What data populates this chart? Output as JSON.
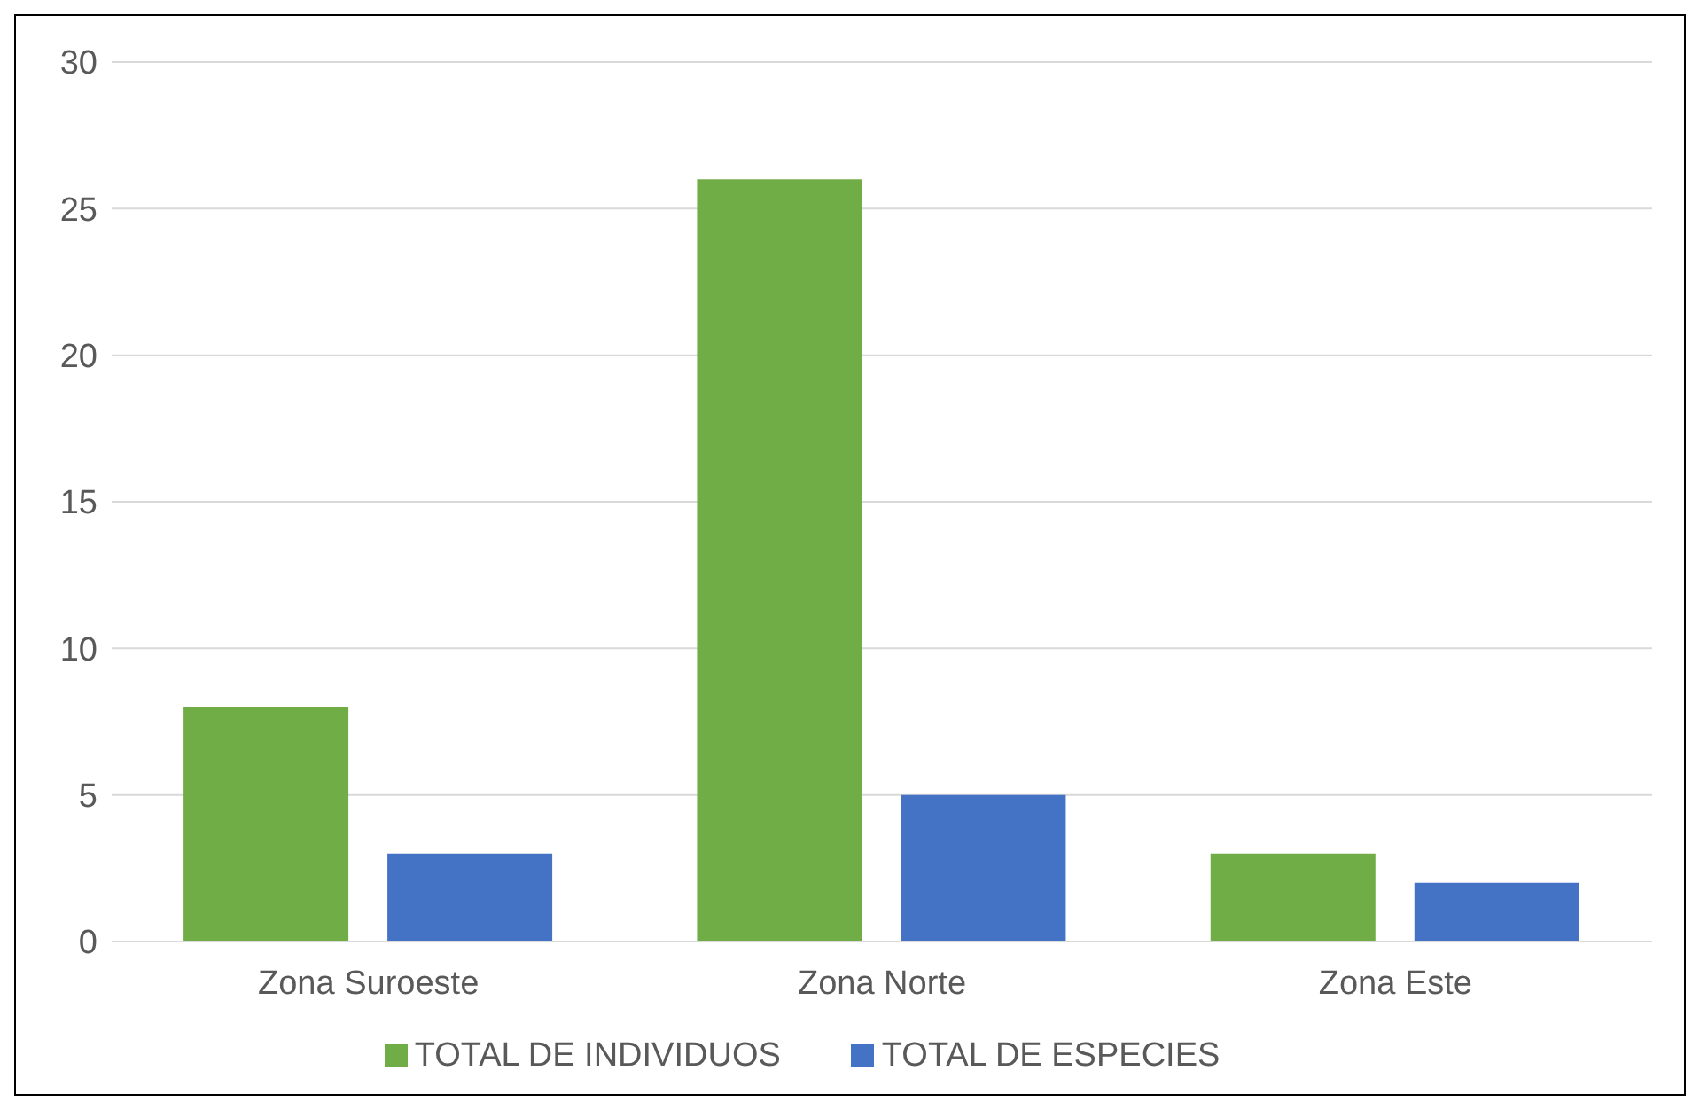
{
  "chart_data": {
    "type": "bar",
    "categories": [
      "Zona Suroeste",
      "Zona Norte",
      "Zona Este"
    ],
    "series": [
      {
        "name": "TOTAL DE INDIVIDUOS",
        "color": "#70ad47",
        "values": [
          8,
          26,
          3
        ]
      },
      {
        "name": "TOTAL DE ESPECIES",
        "color": "#4472c4",
        "values": [
          3,
          5,
          2
        ]
      }
    ],
    "ylim": [
      0,
      30
    ],
    "yticks": [
      0,
      5,
      10,
      15,
      20,
      25,
      30
    ],
    "grid": "y",
    "legend": "bottom"
  }
}
